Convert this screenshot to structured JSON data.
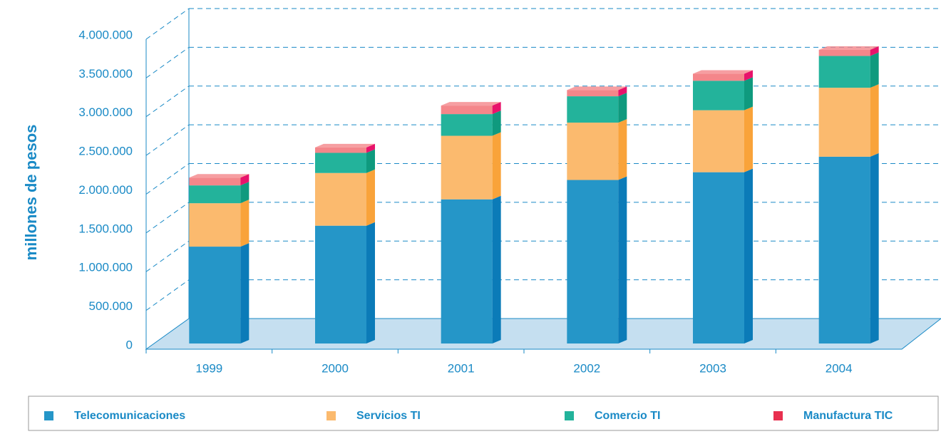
{
  "chart_data": {
    "type": "bar3d_stacked",
    "y_label": "millones de pesos",
    "categories": [
      "1999",
      "2000",
      "2001",
      "2002",
      "2003",
      "2004"
    ],
    "series": [
      {
        "name": "Telecomunicaciones",
        "color": "#2596c8",
        "side": "#0b7bb8",
        "values": [
          1250000,
          1520000,
          1860000,
          2110000,
          2210000,
          2410000
        ]
      },
      {
        "name": "Servicios TI",
        "color": "#fbba6e",
        "side": "#f9a33a",
        "values": [
          560000,
          680000,
          820000,
          740000,
          800000,
          890000
        ]
      },
      {
        "name": "Comercio TI",
        "color": "#23b39b",
        "side": "#0f9a7e",
        "values": [
          230000,
          260000,
          280000,
          340000,
          380000,
          410000
        ]
      },
      {
        "name": "Manufactura TIC",
        "color": "#f4868a",
        "side": "#e8136b",
        "legend_color": "#e8304f",
        "values": [
          100000,
          70000,
          110000,
          80000,
          90000,
          80000
        ]
      }
    ],
    "ylim": [
      0,
      4000000
    ],
    "yticks": [
      0,
      {
        "value": 500000,
        "label": "500.000"
      },
      {
        "value": 1000000,
        "label": "1.000.000"
      },
      {
        "value": 1500000,
        "label": "1.500.000"
      },
      {
        "value": 2000000,
        "label": "2.000.000"
      },
      {
        "value": 2500000,
        "label": "2.500.000"
      },
      {
        "value": 3000000,
        "label": "3.000.000"
      },
      {
        "value": 3500000,
        "label": "3.500.000"
      },
      {
        "value": 4000000,
        "label": "4.000.000"
      }
    ],
    "grid": true
  }
}
